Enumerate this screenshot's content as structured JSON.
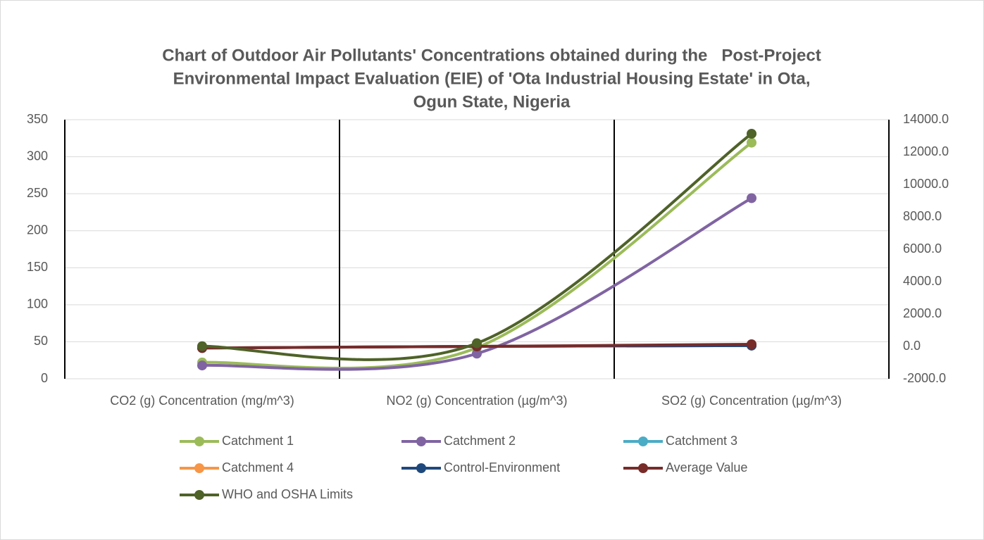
{
  "chart_data": {
    "type": "line",
    "smooth": true,
    "title": [
      "Chart of Outdoor Air Pollutants' Concentrations obtained during the   Post-Project",
      "Environmental Impact Evaluation (EIE) of 'Ota Industrial Housing Estate' in Ota,",
      "Ogun State, Nigeria"
    ],
    "categories": [
      "CO2 (g) Concentration (mg/m^3)",
      "NO2 (g) Concentration (µg/m^3)",
      "SO2 (g) Concentration (µg/m^3)"
    ],
    "ylim": [
      0,
      350
    ],
    "yticks": [
      0,
      50,
      100,
      150,
      200,
      250,
      300,
      350
    ],
    "y2lim": [
      -2000,
      14000
    ],
    "y2ticks": [
      {
        "value": -2000,
        "label": "-2000.0"
      },
      {
        "value": 0,
        "label": "0.0"
      },
      {
        "value": 2000,
        "label": "2000.0"
      },
      {
        "value": 4000,
        "label": "4000.0"
      },
      {
        "value": 6000,
        "label": "6000.0"
      },
      {
        "value": 8000,
        "label": "8000.0"
      },
      {
        "value": 10000,
        "label": "10000.0"
      },
      {
        "value": 12000,
        "label": "12000.0"
      },
      {
        "value": 14000,
        "label": "14000.0"
      }
    ],
    "grid": true,
    "legend": "bottom",
    "series": [
      {
        "name": "Catchment 1",
        "color": "#9bbb59",
        "values": [
          22,
          42,
          319
        ]
      },
      {
        "name": "Catchment 2",
        "color": "#8064a2",
        "values": [
          18,
          34,
          244
        ]
      },
      {
        "name": "Catchment 3",
        "color": "#4bacc6",
        "axis": "y2",
        "values": [
          -100,
          0,
          50
        ]
      },
      {
        "name": "Catchment 4",
        "color": "#f79646",
        "axis": "y2",
        "values": [
          -100,
          0,
          50
        ]
      },
      {
        "name": "Control-Environment",
        "color": "#1f497d",
        "axis": "y2",
        "values": [
          -100,
          0,
          50
        ]
      },
      {
        "name": "Average Value",
        "color": "#772c2a",
        "axis": "y2",
        "values": [
          -100,
          0,
          130
        ]
      },
      {
        "name": "WHO and OSHA Limits",
        "color": "#4f6228",
        "values": [
          44,
          48,
          331
        ]
      }
    ]
  }
}
